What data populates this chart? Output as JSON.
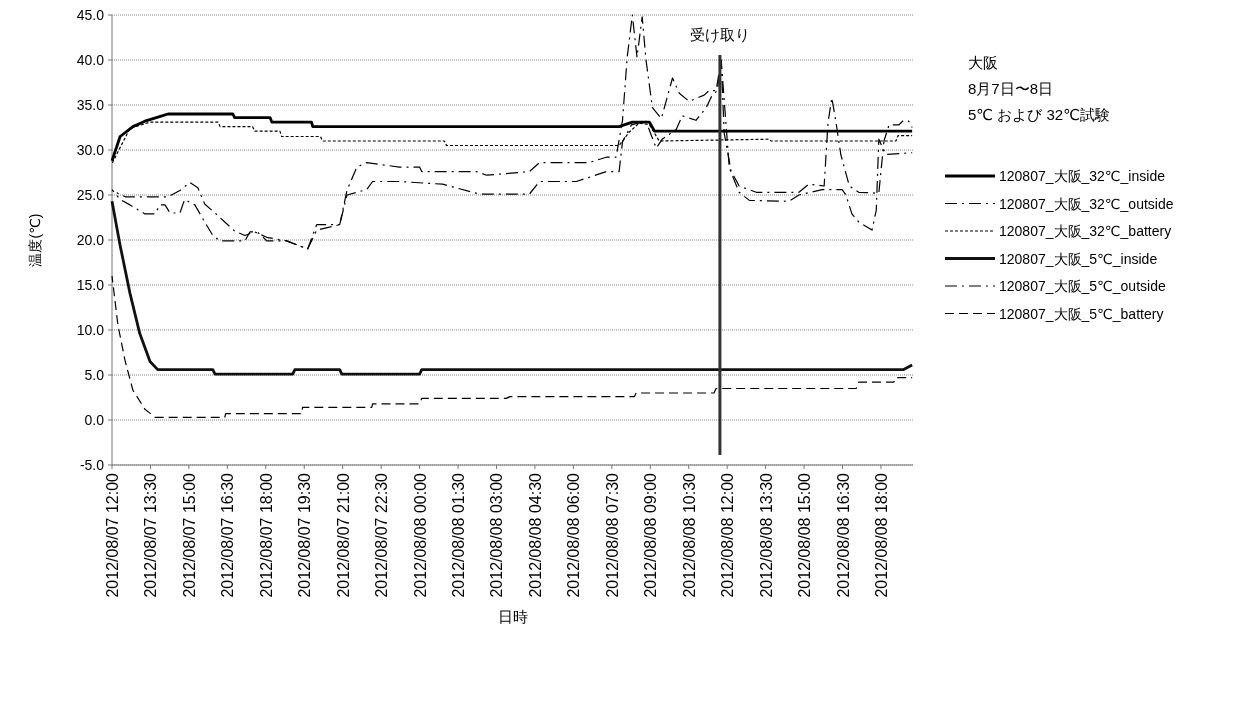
{
  "chart_data": {
    "type": "line",
    "xlabel": "日時",
    "ylabel": "温度(℃)",
    "annotations": [
      "大阪",
      "8月7日〜8日",
      "5℃ および 32℃試験"
    ],
    "xlim": [
      "2012-08-07T12:00",
      "2012-08-08T19:15"
    ],
    "xticks": [
      {
        "value": "2012-08-07T12:00",
        "label": "2012/08/07 12:00"
      },
      {
        "value": "2012-08-07T13:30",
        "label": "2012/08/07 13:30"
      },
      {
        "value": "2012-08-07T15:00",
        "label": "2012/08/07 15:00"
      },
      {
        "value": "2012-08-07T16:30",
        "label": "2012/08/07 16:30"
      },
      {
        "value": "2012-08-07T18:00",
        "label": "2012/08/07 18:00"
      },
      {
        "value": "2012-08-07T19:30",
        "label": "2012/08/07 19:30"
      },
      {
        "value": "2012-08-07T21:00",
        "label": "2012/08/07 21:00"
      },
      {
        "value": "2012-08-07T22:30",
        "label": "2012/08/07 22:30"
      },
      {
        "value": "2012-08-08T00:00",
        "label": "2012/08/08 00:00"
      },
      {
        "value": "2012-08-08T01:30",
        "label": "2012/08/08 01:30"
      },
      {
        "value": "2012-08-08T03:00",
        "label": "2012/08/08 03:00"
      },
      {
        "value": "2012-08-08T04:30",
        "label": "2012/08/08 04:30"
      },
      {
        "value": "2012-08-08T06:00",
        "label": "2012/08/08 06:00"
      },
      {
        "value": "2012-08-08T07:30",
        "label": "2012/08/08 07:30"
      },
      {
        "value": "2012-08-08T09:00",
        "label": "2012/08/08 09:00"
      },
      {
        "value": "2012-08-08T10:30",
        "label": "2012/08/08 10:30"
      },
      {
        "value": "2012-08-08T12:00",
        "label": "2012/08/08 12:00"
      },
      {
        "value": "2012-08-08T13:30",
        "label": "2012/08/08 13:30"
      },
      {
        "value": "2012-08-08T15:00",
        "label": "2012/08/08 15:00"
      },
      {
        "value": "2012-08-08T16:30",
        "label": "2012/08/08 16:30"
      },
      {
        "value": "2012-08-08T18:00",
        "label": "2012/08/08 18:00"
      }
    ],
    "ylim": [
      -5,
      45
    ],
    "yticks": [
      {
        "value": -5,
        "label": "-5.0"
      },
      {
        "value": 0,
        "label": "0.0"
      },
      {
        "value": 5,
        "label": "5.0"
      },
      {
        "value": 10,
        "label": "10.0"
      },
      {
        "value": 15,
        "label": "15.0"
      },
      {
        "value": 20,
        "label": "20.0"
      },
      {
        "value": 25,
        "label": "25.0"
      },
      {
        "value": 30,
        "label": "30.0"
      },
      {
        "value": 35,
        "label": "35.0"
      },
      {
        "value": 40,
        "label": "40.0"
      },
      {
        "value": 45,
        "label": "45.0"
      }
    ],
    "grid": "y",
    "legend": "right",
    "ref_lines": [
      {
        "axis": "x",
        "value": "2012-08-08T11:43",
        "label": "受け取り",
        "color": "#333333"
      }
    ],
    "series": [
      {
        "name": "120807_大阪_32℃_inside",
        "color": "#000000",
        "line_style": "solid",
        "x": [
          "2012-08-07T12:00",
          "2012-08-07T12:19",
          "2012-08-07T12:49",
          "2012-08-07T13:17",
          "2012-08-07T13:57",
          "2012-08-07T14:11",
          "2012-08-07T16:43",
          "2012-08-07T16:47",
          "2012-08-07T18:10",
          "2012-08-07T18:14",
          "2012-08-07T19:47",
          "2012-08-07T19:50",
          "2012-08-08T07:47",
          "2012-08-08T08:18",
          "2012-08-08T08:58",
          "2012-08-08T09:10",
          "2012-08-08T19:13"
        ],
        "values": [
          28.8,
          31.5,
          32.6,
          33.2,
          33.8,
          34.0,
          34.0,
          33.6,
          33.6,
          33.1,
          33.1,
          32.6,
          32.6,
          33.1,
          33.1,
          32.1,
          32.1
        ]
      },
      {
        "name": "120807_大阪_32℃_outside",
        "color": "#000000",
        "line_style": "dashdot",
        "x": [
          "2012-08-07T12:00",
          "2012-08-07T12:31",
          "2012-08-07T13:29",
          "2012-08-07T14:11",
          "2012-08-07T14:39",
          "2012-08-07T15:02",
          "2012-08-07T15:21",
          "2012-08-07T15:37",
          "2012-08-07T16:01",
          "2012-08-07T16:24",
          "2012-08-07T16:47",
          "2012-08-07T17:11",
          "2012-08-07T17:34",
          "2012-08-07T18:02",
          "2012-08-07T18:49",
          "2012-08-07T19:38",
          "2012-08-07T19:59",
          "2012-08-07T20:53",
          "2012-08-07T21:10",
          "2012-08-07T21:33",
          "2012-08-07T21:56",
          "2012-08-07T23:13",
          "2012-08-08T00:00",
          "2012-08-08T00:05",
          "2012-08-08T02:13",
          "2012-08-08T02:37",
          "2012-08-08T04:17",
          "2012-08-08T04:41",
          "2012-08-08T06:37",
          "2012-08-08T07:17",
          "2012-08-08T07:40",
          "2012-08-08T07:55",
          "2012-08-08T08:06",
          "2012-08-08T08:18",
          "2012-08-08T08:29",
          "2012-08-08T08:41",
          "2012-08-08T08:50",
          "2012-08-08T09:05",
          "2012-08-08T09:26",
          "2012-08-08T09:52",
          "2012-08-08T10:08",
          "2012-08-08T10:31",
          "2012-08-08T11:06",
          "2012-08-08T11:18",
          "2012-08-08T11:34",
          "2012-08-08T11:46",
          "2012-08-08T11:53",
          "2012-08-08T12:09",
          "2012-08-08T12:28",
          "2012-08-08T13:08",
          "2012-08-08T14:48",
          "2012-08-08T15:11",
          "2012-08-08T15:47",
          "2012-08-08T15:56",
          "2012-08-08T16:05",
          "2012-08-08T16:15",
          "2012-08-08T16:26",
          "2012-08-08T16:46",
          "2012-08-08T17:08",
          "2012-08-08T17:55",
          "2012-08-08T18:07",
          "2012-08-08T18:19",
          "2012-08-08T18:42",
          "2012-08-08T18:53",
          "2012-08-08T19:05",
          "2012-08-08T19:13"
        ],
        "values": [
          25.5,
          24.8,
          24.8,
          24.8,
          25.5,
          26.4,
          25.8,
          24.0,
          23.0,
          22.0,
          21.0,
          20.5,
          20.9,
          20.3,
          19.9,
          19.0,
          21.7,
          21.7,
          25.5,
          28.1,
          28.6,
          28.1,
          28.1,
          27.6,
          27.6,
          27.2,
          27.6,
          28.6,
          28.6,
          29.2,
          29.2,
          33.3,
          40.3,
          45.0,
          40.3,
          44.8,
          40.0,
          34.7,
          33.5,
          38.0,
          36.3,
          35.4,
          36.1,
          36.6,
          36.6,
          40.0,
          31.9,
          27.7,
          26.0,
          25.3,
          25.3,
          26.2,
          26.0,
          33.0,
          35.8,
          33.0,
          29.5,
          26.0,
          25.3,
          25.2,
          31.0,
          32.8,
          32.8,
          33.3,
          33.2,
          32.5
        ]
      },
      {
        "name": "120807_大阪_32℃_battery",
        "color": "#000000",
        "line_style": "dotted",
        "x": [
          "2012-08-07T12:00",
          "2012-08-07T12:42",
          "2012-08-07T13:29",
          "2012-08-07T16:08",
          "2012-08-07T16:13",
          "2012-08-07T17:29",
          "2012-08-07T17:34",
          "2012-08-07T18:33",
          "2012-08-07T18:37",
          "2012-08-07T20:08",
          "2012-08-07T20:13",
          "2012-08-08T00:58",
          "2012-08-08T01:03",
          "2012-08-08T07:47",
          "2012-08-08T08:11",
          "2012-08-08T08:34",
          "2012-08-08T08:58",
          "2012-08-08T09:21",
          "2012-08-08T13:38",
          "2012-08-08T13:43",
          "2012-08-08T18:35",
          "2012-08-08T18:40",
          "2012-08-08T19:13"
        ],
        "values": [
          28.5,
          32.4,
          33.1,
          33.1,
          32.6,
          32.6,
          32.1,
          32.1,
          31.5,
          31.5,
          31.0,
          31.0,
          30.5,
          30.5,
          32.0,
          33.0,
          32.8,
          31.0,
          31.2,
          31.0,
          31.0,
          31.6,
          31.6
        ]
      },
      {
        "name": "120807_大阪_5℃_inside",
        "color": "#111111",
        "line_style": "solid",
        "x": [
          "2012-08-07T12:00",
          "2012-08-07T12:19",
          "2012-08-07T12:42",
          "2012-08-07T13:05",
          "2012-08-07T13:29",
          "2012-08-07T13:47",
          "2012-08-07T15:56",
          "2012-08-07T16:01",
          "2012-08-07T19:03",
          "2012-08-07T19:08",
          "2012-08-07T20:53",
          "2012-08-07T20:58",
          "2012-08-08T00:00",
          "2012-08-08T00:05",
          "2012-08-08T18:53",
          "2012-08-08T19:13"
        ],
        "values": [
          24.3,
          19.4,
          14.1,
          9.6,
          6.5,
          5.6,
          5.6,
          5.1,
          5.1,
          5.6,
          5.6,
          5.1,
          5.1,
          5.6,
          5.6,
          6.1
        ]
      },
      {
        "name": "120807_大阪_5℃_outside",
        "color": "#000000",
        "line_style": "dashdot",
        "x": [
          "2012-08-07T12:00",
          "2012-08-07T12:19",
          "2012-08-07T12:42",
          "2012-08-07T13:17",
          "2012-08-07T13:41",
          "2012-08-07T13:52",
          "2012-08-07T14:04",
          "2012-08-07T14:16",
          "2012-08-07T14:39",
          "2012-08-07T14:50",
          "2012-08-07T15:14",
          "2012-08-07T15:37",
          "2012-08-07T15:56",
          "2012-08-07T16:13",
          "2012-08-07T17:11",
          "2012-08-07T17:23",
          "2012-08-07T17:39",
          "2012-08-07T17:50",
          "2012-08-07T18:02",
          "2012-08-07T18:49",
          "2012-08-07T19:38",
          "2012-08-07T19:59",
          "2012-08-07T20:53",
          "2012-08-07T21:10",
          "2012-08-07T21:56",
          "2012-08-07T22:10",
          "2012-08-07T23:13",
          "2012-08-08T00:54",
          "2012-08-08T02:20",
          "2012-08-08T04:17",
          "2012-08-08T04:41",
          "2012-08-08T06:07",
          "2012-08-08T07:17",
          "2012-08-08T07:47",
          "2012-08-08T07:55",
          "2012-08-08T08:16",
          "2012-08-08T08:50",
          "2012-08-08T09:14",
          "2012-08-08T09:28",
          "2012-08-08T10:01",
          "2012-08-08T10:15",
          "2012-08-08T10:47",
          "2012-08-08T11:11",
          "2012-08-08T11:25",
          "2012-08-08T11:37",
          "2012-08-08T11:46",
          "2012-08-08T12:05",
          "2012-08-08T12:28",
          "2012-08-08T12:52",
          "2012-08-08T14:25",
          "2012-08-08T14:48",
          "2012-08-08T15:42",
          "2012-08-08T16:29",
          "2012-08-08T16:38",
          "2012-08-08T16:52",
          "2012-08-08T17:08",
          "2012-08-08T17:39",
          "2012-08-08T17:49",
          "2012-08-08T17:55",
          "2012-08-08T18:11",
          "2012-08-08T19:13"
        ],
        "values": [
          25.6,
          24.5,
          23.9,
          22.9,
          22.9,
          23.9,
          23.9,
          23.0,
          23.0,
          24.5,
          23.9,
          22.0,
          20.5,
          19.9,
          19.9,
          20.9,
          20.9,
          20.5,
          19.9,
          19.9,
          19.0,
          21.1,
          21.7,
          25.0,
          25.6,
          26.5,
          26.5,
          26.2,
          25.1,
          25.1,
          26.5,
          26.5,
          27.6,
          27.6,
          30.9,
          32.8,
          33.2,
          30.2,
          31.2,
          32.3,
          33.8,
          33.3,
          34.7,
          36.1,
          36.6,
          40.0,
          28.0,
          25.3,
          24.4,
          24.3,
          25.0,
          25.6,
          25.6,
          25.0,
          22.9,
          22.0,
          21.1,
          23.3,
          31.2,
          29.5,
          29.7
        ]
      },
      {
        "name": "120807_大阪_5℃_battery",
        "color": "#000000",
        "line_style": "dashed",
        "x": [
          "2012-08-07T12:00",
          "2012-08-07T12:14",
          "2012-08-07T12:31",
          "2012-08-07T12:49",
          "2012-08-07T13:17",
          "2012-08-07T13:41",
          "2012-08-07T14:04",
          "2012-08-07T16:24",
          "2012-08-07T16:26",
          "2012-08-07T19:24",
          "2012-08-07T19:26",
          "2012-08-07T22:08",
          "2012-08-07T22:10",
          "2012-08-08T00:00",
          "2012-08-08T00:05",
          "2012-08-08T03:23",
          "2012-08-08T03:31",
          "2012-08-08T08:23",
          "2012-08-08T08:27",
          "2012-08-08T11:29",
          "2012-08-08T11:34",
          "2012-08-08T17:02",
          "2012-08-08T17:08",
          "2012-08-08T18:30",
          "2012-08-08T18:35",
          "2012-08-08T19:13"
        ],
        "values": [
          16.0,
          10.5,
          6.5,
          3.3,
          1.2,
          0.3,
          0.3,
          0.3,
          0.7,
          0.7,
          1.4,
          1.4,
          1.8,
          1.8,
          2.4,
          2.4,
          2.6,
          2.6,
          3.0,
          3.0,
          3.5,
          3.5,
          4.2,
          4.2,
          4.7,
          4.7
        ]
      }
    ]
  }
}
